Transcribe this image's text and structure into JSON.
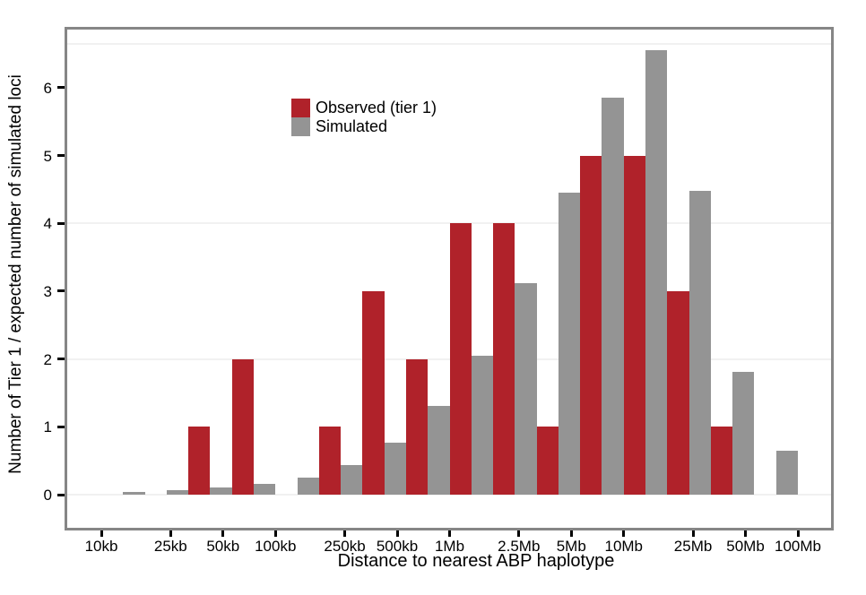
{
  "chart_data": {
    "type": "bar",
    "title": "",
    "xlabel": "Distance to nearest ABP haplotype",
    "ylabel": "Number of Tier 1 / expected number of simulated loci",
    "x_scale": "log",
    "x_ticks": [
      {
        "label": "10kb",
        "log10_bp": 4.0
      },
      {
        "label": "25kb",
        "log10_bp": 4.398
      },
      {
        "label": "50kb",
        "log10_bp": 4.699
      },
      {
        "label": "100kb",
        "log10_bp": 5.0
      },
      {
        "label": "250kb",
        "log10_bp": 5.398
      },
      {
        "label": "500kb",
        "log10_bp": 5.699
      },
      {
        "label": "1Mb",
        "log10_bp": 6.0
      },
      {
        "label": "2.5Mb",
        "log10_bp": 6.398
      },
      {
        "label": "5Mb",
        "log10_bp": 6.699
      },
      {
        "label": "10Mb",
        "log10_bp": 7.0
      },
      {
        "label": "25Mb",
        "log10_bp": 7.398
      },
      {
        "label": "50Mb",
        "log10_bp": 7.699
      },
      {
        "label": "100Mb",
        "log10_bp": 8.0
      }
    ],
    "y_ticks": [
      0,
      1,
      2,
      3,
      4,
      5,
      6
    ],
    "ylim": [
      -0.55,
      6.9
    ],
    "grid_y_values": [
      0,
      2,
      4,
      6.65
    ],
    "bins": {
      "start_log10_bp": 4.0,
      "width_log10": 0.25,
      "count": 16,
      "note": "quarter-decade histogram bins from 10kb to 100Mb; red (observed) bar drawn on left half of bin, gray (simulated) on right half"
    },
    "series": [
      {
        "name": "Observed (tier 1)",
        "color": "#b0222a",
        "values": [
          0,
          0,
          1,
          2,
          0,
          1,
          3,
          2,
          4,
          4,
          1,
          5,
          5,
          3,
          1,
          0
        ]
      },
      {
        "name": "Simulated",
        "color": "#949494",
        "values": [
          0.04,
          0.07,
          0.1,
          0.16,
          0.25,
          0.43,
          0.77,
          1.31,
          2.05,
          3.12,
          4.45,
          5.85,
          6.55,
          4.48,
          1.81,
          0.65
        ]
      }
    ],
    "legend_position": "upper-left area inside panel"
  }
}
